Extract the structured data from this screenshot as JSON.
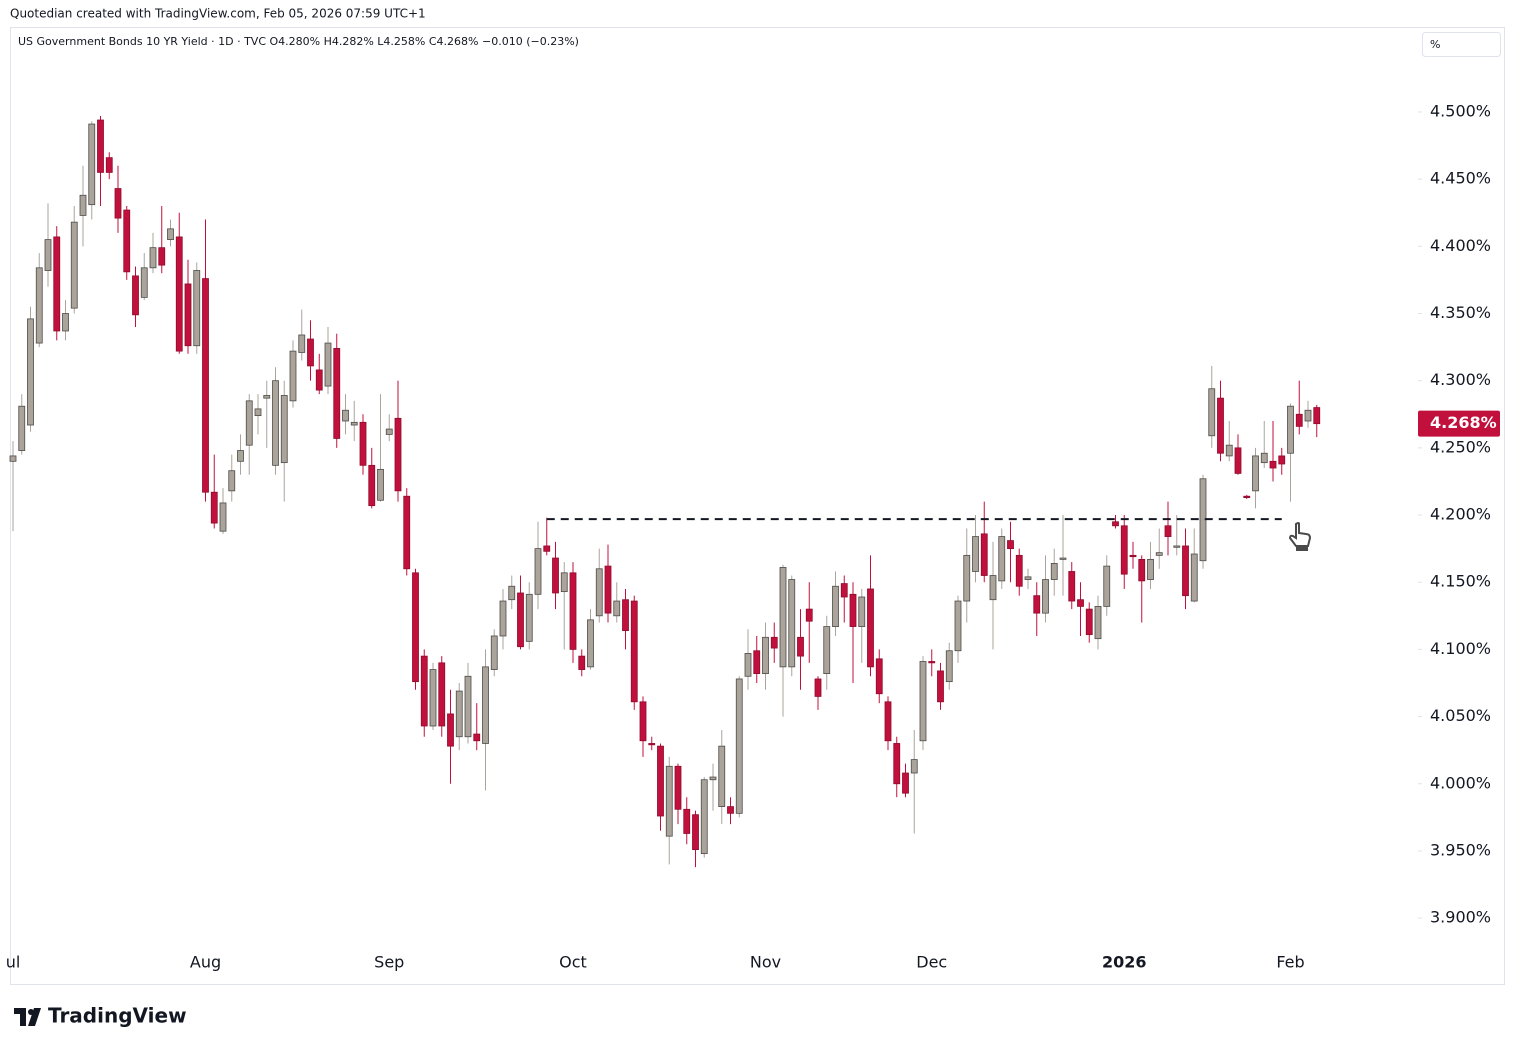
{
  "header": "Quotedian created with TradingView.com, Feb 05, 2026 07:59 UTC+1",
  "footer": {
    "brand": "TradingView"
  },
  "chart_data": {
    "type": "candlestick",
    "title": "US Government Bonds 10 YR Yield · 1D · TVC  O4.280% H4.282% L4.258% C4.268% −0.010 (−0.23%)",
    "unit_label": "%",
    "last_label": "4.268%",
    "up_color": "#aba49b",
    "down_color": "#c2103d",
    "grid": false,
    "ylim": [
      3.88,
      4.561
    ],
    "yticks": [
      {
        "value": 3.9,
        "label": "3.900%"
      },
      {
        "value": 3.95,
        "label": "3.950%"
      },
      {
        "value": 4.0,
        "label": "4.000%"
      },
      {
        "value": 4.05,
        "label": "4.050%"
      },
      {
        "value": 4.1,
        "label": "4.100%"
      },
      {
        "value": 4.15,
        "label": "4.150%"
      },
      {
        "value": 4.2,
        "label": "4.200%"
      },
      {
        "value": 4.25,
        "label": "4.250%"
      },
      {
        "value": 4.3,
        "label": "4.300%"
      },
      {
        "value": 4.35,
        "label": "4.350%"
      },
      {
        "value": 4.4,
        "label": "4.400%"
      },
      {
        "value": 4.45,
        "label": "4.450%"
      },
      {
        "value": 4.5,
        "label": "4.500%"
      }
    ],
    "level_line": {
      "value": 4.197,
      "start": 61,
      "end": 145
    },
    "categories": [
      "ul",
      null,
      null,
      null,
      null,
      null,
      null,
      null,
      null,
      null,
      null,
      null,
      null,
      null,
      null,
      null,
      null,
      null,
      null,
      null,
      null,
      null,
      "Aug",
      null,
      null,
      null,
      null,
      null,
      null,
      null,
      null,
      null,
      null,
      null,
      null,
      null,
      null,
      null,
      null,
      null,
      null,
      null,
      null,
      "Sep",
      null,
      null,
      null,
      null,
      null,
      null,
      null,
      null,
      null,
      null,
      null,
      null,
      null,
      null,
      null,
      null,
      null,
      null,
      null,
      null,
      "Oct",
      null,
      null,
      null,
      null,
      null,
      null,
      null,
      null,
      null,
      null,
      null,
      null,
      null,
      null,
      null,
      null,
      null,
      null,
      null,
      null,
      null,
      "Nov",
      null,
      null,
      null,
      null,
      null,
      null,
      null,
      null,
      null,
      null,
      null,
      null,
      null,
      null,
      null,
      null,
      null,
      null,
      "Dec",
      null,
      null,
      null,
      null,
      null,
      null,
      null,
      null,
      null,
      null,
      null,
      null,
      null,
      null,
      null,
      null,
      null,
      null,
      null,
      null,
      null,
      "2026",
      null,
      null,
      null,
      null,
      null,
      null,
      null,
      null,
      null,
      null,
      null,
      null,
      null,
      null,
      null,
      null,
      null,
      null,
      "Feb",
      null,
      null,
      null
    ],
    "open": [
      4.24,
      4.248,
      4.267,
      4.328,
      4.382,
      4.407,
      4.337,
      4.354,
      4.423,
      4.431,
      4.494,
      4.466,
      4.443,
      4.427,
      4.378,
      4.362,
      4.384,
      4.399,
      4.405,
      4.407,
      4.372,
      4.326,
      4.376,
      4.217,
      4.188,
      4.218,
      4.24,
      4.252,
      4.274,
      4.287,
      4.237,
      4.239,
      4.285,
      4.321,
      4.331,
      4.308,
      4.296,
      4.324,
      4.27,
      4.267,
      4.269,
      4.237,
      4.211,
      4.26,
      4.272,
      4.214,
      4.157,
      4.095,
      4.043,
      4.09,
      4.052,
      4.035,
      4.035,
      4.037,
      4.03,
      4.085,
      4.11,
      4.137,
      4.142,
      4.106,
      4.141,
      4.177,
      4.168,
      4.143,
      4.157,
      4.095,
      4.087,
      4.125,
      4.162,
      4.125,
      4.137,
      4.136,
      4.061,
      4.03,
      4.028,
      3.961,
      4.013,
      3.981,
      3.977,
      3.948,
      4.003,
      3.983,
      3.983,
      3.978,
      4.08,
      4.099,
      4.082,
      4.109,
      4.087,
      4.087,
      4.109,
      4.13,
      4.078,
      4.082,
      4.117,
      4.149,
      4.141,
      4.117,
      4.145,
      4.093,
      4.061,
      4.03,
      4.008,
      4.008,
      4.032,
      4.091,
      4.084,
      4.076,
      4.099,
      4.136,
      4.158,
      4.186,
      4.137,
      4.151,
      4.181,
      4.17,
      4.152,
      4.14,
      4.127,
      4.152,
      4.167,
      4.158,
      4.137,
      4.13,
      4.108,
      4.132,
      4.195,
      4.192,
      4.17,
      4.167,
      4.152,
      4.17,
      4.192,
      4.176,
      4.177,
      4.136,
      4.166,
      4.259,
      4.287,
      4.244,
      4.25,
      4.214,
      4.218,
      4.239,
      4.24,
      4.244,
      4.246,
      4.275,
      4.27,
      4.28
    ],
    "high": [
      4.255,
      4.29,
      4.355,
      4.395,
      4.432,
      4.415,
      4.36,
      4.43,
      4.46,
      4.493,
      4.497,
      4.47,
      4.46,
      4.43,
      4.385,
      4.395,
      4.41,
      4.43,
      4.42,
      4.425,
      4.39,
      4.388,
      4.42,
      4.245,
      4.22,
      4.245,
      4.26,
      4.29,
      4.29,
      4.3,
      4.31,
      4.3,
      4.33,
      4.353,
      4.345,
      4.32,
      4.34,
      4.335,
      4.29,
      4.285,
      4.275,
      4.25,
      4.29,
      4.275,
      4.3,
      4.22,
      4.16,
      4.1,
      4.09,
      4.095,
      4.07,
      4.075,
      4.09,
      4.06,
      4.1,
      4.115,
      4.145,
      4.155,
      4.155,
      4.15,
      4.195,
      4.198,
      4.18,
      4.165,
      4.165,
      4.1,
      4.13,
      4.175,
      4.178,
      4.15,
      4.145,
      4.14,
      4.065,
      4.035,
      4.03,
      4.02,
      4.015,
      3.99,
      3.98,
      4.005,
      4.015,
      4.04,
      3.99,
      4.08,
      4.115,
      4.11,
      4.12,
      4.12,
      4.163,
      4.155,
      4.13,
      4.15,
      4.08,
      4.125,
      4.158,
      4.155,
      4.15,
      4.145,
      4.17,
      4.1,
      4.065,
      4.035,
      4.015,
      4.04,
      4.095,
      4.1,
      4.09,
      4.105,
      4.14,
      4.19,
      4.2,
      4.21,
      4.18,
      4.19,
      4.195,
      4.175,
      4.16,
      4.15,
      4.17,
      4.175,
      4.2,
      4.165,
      4.15,
      4.135,
      4.14,
      4.17,
      4.2,
      4.2,
      4.18,
      4.17,
      4.18,
      4.19,
      4.21,
      4.2,
      4.19,
      4.19,
      4.23,
      4.311,
      4.3,
      4.27,
      4.26,
      4.215,
      4.25,
      4.27,
      4.27,
      4.25,
      4.283,
      4.3,
      4.285,
      4.282
    ],
    "low": [
      4.188,
      4.245,
      4.262,
      4.325,
      4.37,
      4.33,
      4.33,
      4.35,
      4.4,
      4.42,
      4.43,
      4.45,
      4.41,
      4.375,
      4.34,
      4.36,
      4.38,
      4.38,
      4.4,
      4.32,
      4.32,
      4.32,
      4.21,
      4.19,
      4.186,
      4.21,
      4.23,
      4.23,
      4.26,
      4.25,
      4.23,
      4.21,
      4.28,
      4.315,
      4.3,
      4.29,
      4.29,
      4.25,
      4.26,
      4.255,
      4.23,
      4.205,
      4.21,
      4.255,
      4.21,
      4.155,
      4.07,
      4.035,
      4.04,
      4.035,
      4.0,
      4.025,
      4.03,
      4.025,
      3.995,
      4.08,
      4.1,
      4.13,
      4.1,
      4.1,
      4.13,
      4.17,
      4.13,
      4.1,
      4.09,
      4.08,
      4.085,
      4.12,
      4.12,
      4.12,
      4.1,
      4.055,
      4.02,
      4.025,
      3.965,
      3.94,
      3.97,
      3.955,
      3.938,
      3.945,
      3.98,
      3.97,
      3.97,
      3.975,
      4.07,
      4.075,
      4.07,
      4.09,
      4.05,
      4.08,
      4.07,
      4.09,
      4.055,
      4.07,
      4.11,
      4.12,
      4.075,
      4.09,
      4.08,
      4.06,
      4.025,
      3.99,
      3.99,
      3.963,
      4.025,
      4.08,
      4.055,
      4.07,
      4.09,
      4.12,
      4.15,
      4.15,
      4.1,
      4.145,
      4.15,
      4.14,
      4.145,
      4.11,
      4.12,
      4.14,
      4.14,
      4.13,
      4.11,
      4.105,
      4.1,
      4.125,
      4.19,
      4.145,
      4.16,
      4.12,
      4.145,
      4.16,
      4.17,
      4.17,
      4.13,
      4.135,
      4.16,
      4.25,
      4.24,
      4.24,
      4.23,
      4.212,
      4.205,
      4.235,
      4.225,
      4.23,
      4.21,
      4.26,
      4.265,
      4.258
    ],
    "close": [
      4.244,
      4.281,
      4.346,
      4.384,
      4.405,
      4.337,
      4.35,
      4.418,
      4.438,
      4.491,
      4.455,
      4.455,
      4.421,
      4.381,
      4.349,
      4.384,
      4.399,
      4.386,
      4.413,
      4.322,
      4.326,
      4.382,
      4.217,
      4.194,
      4.209,
      4.233,
      4.248,
      4.285,
      4.279,
      4.289,
      4.3,
      4.289,
      4.322,
      4.334,
      4.311,
      4.293,
      4.328,
      4.257,
      4.278,
      4.269,
      4.237,
      4.207,
      4.234,
      4.264,
      4.218,
      4.16,
      4.076,
      4.043,
      4.085,
      4.043,
      4.028,
      4.069,
      4.08,
      4.032,
      4.087,
      4.11,
      4.136,
      4.147,
      4.102,
      4.141,
      4.175,
      4.173,
      4.142,
      4.157,
      4.1,
      4.085,
      4.122,
      4.16,
      4.127,
      4.136,
      4.114,
      4.061,
      4.032,
      4.029,
      3.976,
      4.013,
      3.981,
      3.963,
      3.951,
      4.003,
      4.005,
      4.028,
      3.978,
      4.078,
      4.097,
      4.082,
      4.109,
      4.101,
      4.161,
      4.152,
      4.095,
      4.121,
      4.065,
      4.117,
      4.147,
      4.139,
      4.117,
      4.139,
      4.087,
      4.067,
      4.032,
      4.0,
      3.993,
      4.018,
      4.091,
      4.09,
      4.061,
      4.099,
      4.136,
      4.17,
      4.184,
      4.155,
      4.155,
      4.184,
      4.175,
      4.147,
      4.154,
      4.127,
      4.152,
      4.164,
      4.168,
      4.136,
      4.132,
      4.111,
      4.132,
      4.162,
      4.192,
      4.156,
      4.169,
      4.151,
      4.167,
      4.172,
      4.184,
      4.177,
      4.14,
      4.171,
      4.227,
      4.294,
      4.246,
      4.252,
      4.231,
      4.213,
      4.244,
      4.246,
      4.235,
      4.238,
      4.281,
      4.266,
      4.278,
      4.268
    ]
  }
}
